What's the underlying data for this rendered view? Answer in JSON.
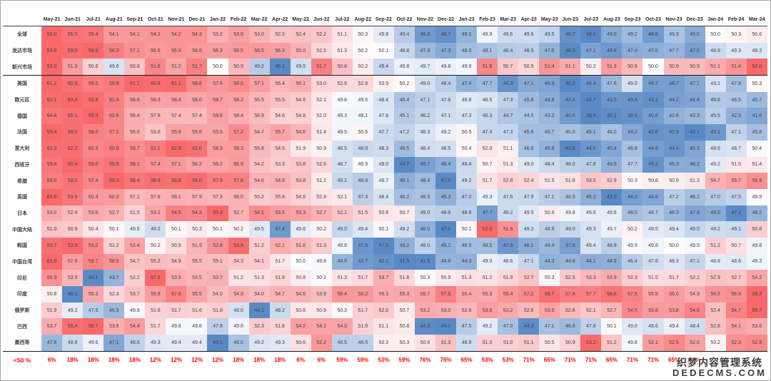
{
  "chart_data": {
    "type": "heatmap",
    "title": "",
    "legend_note": "red = above 50 (expansion), blue = below 50 (contraction), white midpoint = 50; shading scaled per row min/max",
    "colorscale": {
      "low": "#5A8AC6",
      "mid": "#FCFCFF",
      "high": "#F8696B",
      "midpoint": 50,
      "per_row": true
    },
    "value_text_color": "#3f3f3f",
    "footer_text_color": "#ff0000",
    "columns": [
      "May-21",
      "Jun-21",
      "Jul-21",
      "Aug-21",
      "Sep-21",
      "Oct-21",
      "Nov-21",
      "Dec-21",
      "Jan-22",
      "Feb-22",
      "Mar-22",
      "Apr-22",
      "May-22",
      "Jun-22",
      "Jul-22",
      "Aug-22",
      "Sep-22",
      "Oct-22",
      "Nov-22",
      "Dec-22",
      "Jan-23",
      "Feb-23",
      "Mar-23",
      "Apr-23",
      "May-23",
      "Jun-23",
      "Jul-23",
      "Aug-23",
      "Sep-23",
      "Oct-23",
      "Nov-23",
      "Dec-23",
      "Jan-24",
      "Feb-24",
      "Mar-24"
    ],
    "separator_after_row_labels": [
      "新兴市场",
      "墨西哥"
    ],
    "rows": [
      {
        "label": "全球",
        "values": [
          56.0,
          55.5,
          55.4,
          54.1,
          54.1,
          54.2,
          54.2,
          54.3,
          53.2,
          53.8,
          53.0,
          52.3,
          52.4,
          52.2,
          51.1,
          50.3,
          49.8,
          49.4,
          48.8,
          48.7,
          49.1,
          49.9,
          49.6,
          49.6,
          49.5,
          48.7,
          48.6,
          49.0,
          49.2,
          48.8,
          49.3,
          49.0,
          50.0,
          50.3,
          50.6
        ]
      },
      {
        "label": "发达市场",
        "values": [
          59.8,
          59.5,
          59.8,
          58.3,
          57.1,
          56.6,
          56.9,
          56.6,
          56.3,
          56.5,
          56.5,
          56.3,
          55.0,
          52.5,
          51.3,
          50.2,
          50.1,
          48.8,
          47.8,
          47.3,
          48.0,
          48.1,
          48.4,
          48.5,
          47.6,
          46.3,
          47.1,
          46.8,
          47.4,
          47.5,
          47.7,
          47.0,
          48.9,
          49.3,
          49.3
        ]
      },
      {
        "label": "新兴市场",
        "values": [
          52.0,
          51.3,
          50.6,
          49.6,
          50.8,
          51.6,
          51.2,
          51.7,
          50.0,
          50.9,
          49.2,
          48.1,
          49.5,
          51.7,
          50.8,
          50.2,
          49.4,
          49.8,
          49.7,
          49.8,
          49.9,
          51.6,
          50.7,
          50.5,
          51.4,
          51.1,
          50.2,
          51.3,
          50.9,
          50.0,
          50.9,
          50.9,
          51.1,
          51.4,
          52.0
        ]
      },
      {
        "label": "美国",
        "values": [
          61.2,
          60.6,
          59.5,
          59.9,
          61.1,
          60.8,
          61.1,
          58.8,
          57.6,
          58.6,
          57.1,
          55.4,
          56.1,
          53.0,
          52.8,
          52.8,
          50.9,
          50.2,
          49.0,
          48.4,
          47.4,
          47.7,
          46.3,
          47.1,
          46.9,
          46.0,
          46.4,
          47.6,
          49.0,
          46.7,
          46.7,
          47.1,
          49.1,
          47.8,
          50.3
        ]
      },
      {
        "label": "欧元区",
        "values": [
          63.1,
          63.4,
          62.8,
          61.4,
          58.6,
          58.3,
          58.4,
          58.0,
          58.7,
          58.2,
          56.5,
          55.5,
          54.6,
          52.1,
          49.8,
          49.6,
          48.4,
          46.4,
          47.1,
          47.8,
          48.8,
          48.5,
          47.3,
          45.8,
          44.8,
          43.4,
          42.7,
          43.5,
          43.4,
          43.1,
          44.2,
          44.4,
          46.6,
          46.5,
          45.7
        ]
      },
      {
        "label": "德国",
        "values": [
          64.4,
          65.1,
          65.9,
          62.6,
          58.4,
          57.8,
          57.4,
          57.4,
          59.8,
          58.4,
          56.9,
          54.6,
          54.8,
          52.0,
          49.3,
          49.1,
          47.8,
          45.1,
          46.2,
          47.1,
          47.3,
          46.3,
          44.7,
          44.5,
          43.2,
          40.6,
          38.8,
          39.1,
          39.6,
          40.8,
          42.6,
          43.3,
          45.5,
          42.5,
          41.6
        ]
      },
      {
        "label": "法国",
        "values": [
          59.4,
          59.0,
          58.0,
          57.5,
          55.0,
          53.6,
          55.9,
          55.6,
          55.5,
          57.2,
          54.7,
          55.7,
          54.6,
          51.4,
          49.5,
          50.6,
          47.7,
          47.2,
          48.3,
          49.2,
          50.5,
          47.4,
          47.3,
          45.6,
          45.7,
          46.0,
          45.1,
          46.0,
          44.2,
          42.8,
          42.9,
          42.1,
          43.1,
          47.1,
          45.8
        ]
      },
      {
        "label": "意大利",
        "values": [
          62.3,
          62.2,
          60.3,
          60.9,
          59.7,
          61.1,
          62.8,
          62.0,
          58.3,
          58.3,
          55.8,
          54.5,
          51.9,
          50.9,
          48.5,
          48.0,
          48.3,
          46.5,
          48.4,
          48.5,
          50.4,
          52.0,
          51.1,
          46.8,
          45.9,
          43.8,
          44.5,
          45.4,
          46.8,
          44.9,
          44.4,
          45.3,
          48.5,
          48.7,
          50.4
        ]
      },
      {
        "label": "西班牙",
        "values": [
          59.4,
          60.4,
          59.0,
          59.5,
          58.1,
          57.4,
          57.1,
          56.2,
          56.2,
          56.9,
          54.2,
          53.3,
          53.8,
          52.6,
          48.7,
          49.9,
          49.0,
          44.7,
          45.7,
          46.4,
          48.4,
          50.7,
          51.3,
          49.0,
          48.4,
          48.0,
          47.8,
          46.5,
          47.7,
          45.1,
          46.3,
          46.2,
          49.2,
          51.5,
          51.4
        ]
      },
      {
        "label": "希腊",
        "values": [
          58.0,
          58.6,
          57.4,
          59.3,
          58.4,
          58.9,
          58.8,
          59.0,
          57.9,
          57.8,
          54.6,
          54.8,
          53.8,
          51.1,
          49.1,
          48.8,
          49.7,
          48.1,
          48.4,
          47.2,
          49.2,
          51.7,
          52.8,
          52.4,
          51.5,
          51.8,
          53.5,
          52.9,
          50.3,
          50.8,
          50.9,
          51.3,
          54.7,
          55.7,
          56.9
        ]
      },
      {
        "label": "英国",
        "values": [
          65.6,
          63.9,
          60.4,
          60.3,
          57.1,
          57.8,
          58.1,
          57.9,
          57.3,
          58.0,
          55.2,
          55.8,
          54.6,
          52.8,
          52.1,
          47.3,
          48.4,
          46.2,
          46.5,
          45.3,
          47.0,
          49.3,
          47.9,
          47.8,
          47.1,
          46.5,
          45.3,
          43.0,
          44.3,
          44.8,
          47.2,
          46.2,
          47.0,
          47.5,
          49.9
        ]
      },
      {
        "label": "日本",
        "values": [
          53.0,
          52.4,
          53.0,
          52.7,
          51.5,
          53.2,
          54.5,
          54.3,
          55.4,
          52.7,
          54.1,
          53.5,
          53.3,
          52.7,
          52.1,
          51.5,
          50.8,
          50.7,
          49.0,
          48.9,
          48.9,
          47.7,
          49.2,
          49.5,
          50.6,
          49.8,
          49.6,
          49.6,
          48.5,
          48.7,
          48.3,
          47.9,
          48.0,
          47.2,
          48.2
        ]
      },
      {
        "label": "中国大陆",
        "values": [
          51.0,
          50.9,
          50.4,
          50.1,
          49.6,
          49.2,
          50.1,
          50.3,
          50.1,
          50.2,
          49.5,
          47.4,
          49.6,
          50.2,
          49.0,
          49.4,
          50.1,
          49.2,
          48.0,
          47.0,
          50.1,
          52.6,
          51.9,
          49.2,
          48.8,
          49.0,
          49.3,
          49.7,
          50.2,
          49.5,
          49.4,
          49.0,
          49.2,
          49.1,
          50.8
        ]
      },
      {
        "label": "韩国",
        "values": [
          53.7,
          53.9,
          53.0,
          51.2,
          52.4,
          50.2,
          50.9,
          51.9,
          52.8,
          53.8,
          51.2,
          52.1,
          51.8,
          51.3,
          49.8,
          47.6,
          47.3,
          48.2,
          49.0,
          48.2,
          48.5,
          48.5,
          47.6,
          48.1,
          48.4,
          47.8,
          49.4,
          48.9,
          49.9,
          49.8,
          50.0,
          49.9,
          51.2,
          50.7,
          49.8
        ]
      },
      {
        "label": "中国台湾",
        "values": [
          62.0,
          57.6,
          59.7,
          58.5,
          54.7,
          55.2,
          54.9,
          55.5,
          55.1,
          54.3,
          54.1,
          51.7,
          50.0,
          49.8,
          44.6,
          42.7,
          42.2,
          41.5,
          41.6,
          44.6,
          44.3,
          49.0,
          48.6,
          47.1,
          44.3,
          44.8,
          44.1,
          44.3,
          46.4,
          47.6,
          48.3,
          47.1,
          48.8,
          48.6,
          49.3
        ]
      },
      {
        "label": "印尼",
        "values": [
          55.3,
          53.5,
          40.1,
          43.7,
          52.2,
          57.2,
          53.9,
          53.5,
          53.7,
          51.2,
          51.3,
          51.9,
          50.8,
          50.2,
          51.3,
          51.7,
          53.7,
          51.8,
          50.3,
          50.9,
          51.3,
          51.2,
          51.9,
          52.7,
          50.3,
          52.5,
          53.3,
          53.9,
          52.3,
          51.5,
          51.7,
          52.2,
          52.9,
          52.7,
          54.2
        ]
      },
      {
        "label": "印度",
        "values": [
          50.8,
          48.1,
          55.3,
          52.3,
          53.7,
          55.9,
          57.6,
          55.5,
          54.0,
          54.9,
          54.0,
          54.7,
          54.6,
          53.9,
          56.4,
          56.2,
          55.1,
          55.3,
          55.7,
          57.8,
          55.4,
          55.3,
          56.4,
          57.2,
          58.7,
          57.8,
          57.7,
          58.6,
          57.5,
          55.5,
          56.0,
          54.9,
          56.5,
          56.9,
          59.2
        ]
      },
      {
        "label": "俄罗斯",
        "values": [
          51.9,
          49.2,
          47.5,
          46.5,
          49.8,
          51.6,
          51.7,
          51.6,
          51.8,
          48.6,
          44.1,
          48.2,
          50.8,
          50.9,
          50.3,
          51.7,
          52.0,
          50.7,
          53.2,
          53.0,
          52.6,
          53.6,
          53.2,
          52.6,
          53.5,
          52.6,
          52.1,
          52.7,
          54.5,
          53.8,
          53.8,
          54.6,
          52.4,
          54.7,
          55.7
        ]
      },
      {
        "label": "巴西",
        "values": [
          53.7,
          56.4,
          56.7,
          53.6,
          54.4,
          51.7,
          49.8,
          49.8,
          47.8,
          49.6,
          52.3,
          51.8,
          54.2,
          54.1,
          54.0,
          51.9,
          51.1,
          50.8,
          44.3,
          44.2,
          47.5,
          49.2,
          47.0,
          44.3,
          47.1,
          46.6,
          47.8,
          50.1,
          49.0,
          48.6,
          49.4,
          48.4,
          52.8,
          54.1,
          53.6
        ]
      },
      {
        "label": "墨西哥",
        "values": [
          47.6,
          48.8,
          49.6,
          47.1,
          48.6,
          49.3,
          49.4,
          49.4,
          46.1,
          48.0,
          49.2,
          49.3,
          50.6,
          52.2,
          48.5,
          48.5,
          50.3,
          50.3,
          50.6,
          51.3,
          48.9,
          51.0,
          51.0,
          51.1,
          50.5,
          50.9,
          53.2,
          51.2,
          49.8,
          52.1,
          52.5,
          52.0,
          50.2,
          52.3,
          52.5
        ]
      }
    ],
    "footer": {
      "label": "<50 %",
      "values": [
        "6%",
        "18%",
        "18%",
        "18%",
        "18%",
        "12%",
        "12%",
        "12%",
        "12%",
        "18%",
        "18%",
        "18%",
        "6%",
        "6%",
        "59%",
        "59%",
        "53%",
        "59%",
        "76%",
        "76%",
        "65%",
        "53%",
        "53%",
        "71%",
        "65%",
        "71%",
        "71%",
        "65%",
        "71%",
        "71%",
        "65%",
        "71%",
        "",
        "",
        ""
      ]
    }
  },
  "watermark": {
    "line1": "织梦内容管理系统",
    "line2": "DEDECMS.COM"
  }
}
